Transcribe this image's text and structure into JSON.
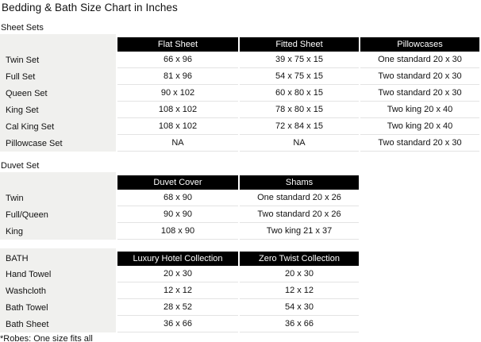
{
  "page": {
    "title": "Bedding & Bath Size Chart in Inches",
    "footnote": "*Robes: One size fits all"
  },
  "colors": {
    "header_bg": "#000000",
    "header_text": "#ffffff",
    "label_column_bg": "#f0f0ee",
    "row_divider": "#e3e3e3",
    "body_text": "#111111"
  },
  "tables": [
    {
      "section_label": "Sheet Sets",
      "corner_label": "",
      "columns": [
        "Flat Sheet",
        "Fitted Sheet",
        "Pillowcases"
      ],
      "rows": [
        {
          "label": "Twin Set",
          "values": [
            "66 x 96",
            "39 x 75 x 15",
            "One standard 20 x 30"
          ]
        },
        {
          "label": "Full Set",
          "values": [
            "81 x 96",
            "54 x 75 x 15",
            "Two standard 20 x 30"
          ]
        },
        {
          "label": "Queen Set",
          "values": [
            "90 x 102",
            "60 x 80 x 15",
            "Two standard 20 x 30"
          ]
        },
        {
          "label": "King Set",
          "values": [
            "108 x 102",
            "78 x 80 x 15",
            "Two king 20 x 40"
          ]
        },
        {
          "label": "Cal King Set",
          "values": [
            "108 x 102",
            "72 x 84 x 15",
            "Two king 20 x 40"
          ]
        },
        {
          "label": "Pillowcase Set",
          "values": [
            "NA",
            "NA",
            "Two standard 20 x 30"
          ]
        }
      ]
    },
    {
      "section_label": "Duvet Set",
      "corner_label": "",
      "columns": [
        "Duvet Cover",
        "Shams"
      ],
      "rows": [
        {
          "label": "Twin",
          "values": [
            "68 x 90",
            "One standard 20 x 26"
          ]
        },
        {
          "label": "Full/Queen",
          "values": [
            "90 x 90",
            "Two standard 20 x 26"
          ]
        },
        {
          "label": "King",
          "values": [
            "108 x 90",
            "Two king 21 x 37"
          ]
        }
      ]
    },
    {
      "section_label": "",
      "corner_label": "BATH",
      "columns": [
        "Luxury Hotel Collection",
        "Zero Twist Collection"
      ],
      "rows": [
        {
          "label": "Hand Towel",
          "values": [
            "20 x 30",
            "20 x 30"
          ]
        },
        {
          "label": "Washcloth",
          "values": [
            "12 x 12",
            "12 x 12"
          ]
        },
        {
          "label": "Bath Towel",
          "values": [
            "28 x 52",
            "54 x 30"
          ]
        },
        {
          "label": "Bath Sheet",
          "values": [
            "36 x 66",
            "36 x 66"
          ]
        }
      ]
    }
  ]
}
